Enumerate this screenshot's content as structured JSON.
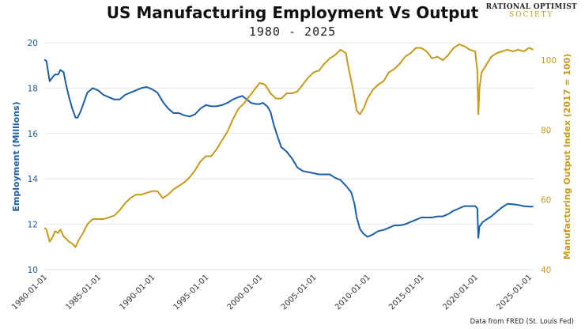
{
  "chart_data": {
    "type": "line",
    "title": "US Manufacturing Employment Vs Output",
    "subtitle": "1980 - 2025",
    "ylabel_left": "Employment (Millions)",
    "ylabel_right": "Manufacturing Output Index (2017 = 100)",
    "ylim_left": [
      10,
      20
    ],
    "ylim_right": [
      40,
      105
    ],
    "xlim": [
      1980,
      2025.5
    ],
    "yticks_left": [
      10,
      12,
      14,
      16,
      18,
      20
    ],
    "yticks_right": [
      40,
      60,
      80,
      100
    ],
    "xticks": [
      {
        "year": 1980,
        "label": "1980-01-01"
      },
      {
        "year": 1985,
        "label": "1985-01-01"
      },
      {
        "year": 1990,
        "label": "1990-01-01"
      },
      {
        "year": 1995,
        "label": "1995-01-01"
      },
      {
        "year": 2000,
        "label": "2000-01-01"
      },
      {
        "year": 2005,
        "label": "2005-01-01"
      },
      {
        "year": 2010,
        "label": "2010-01-01"
      },
      {
        "year": 2015,
        "label": "2015-01-01"
      },
      {
        "year": 2020,
        "label": "2020-01-01"
      },
      {
        "year": 2025,
        "label": "2025-01-01"
      }
    ],
    "grid": "horizontal",
    "series": [
      {
        "name": "Employment (Millions)",
        "axis": "left",
        "color": "#1b5fa8",
        "points": [
          [
            1980.0,
            19.25
          ],
          [
            1980.2,
            19.2
          ],
          [
            1980.5,
            18.3
          ],
          [
            1980.8,
            18.5
          ],
          [
            1981.0,
            18.6
          ],
          [
            1981.3,
            18.6
          ],
          [
            1981.5,
            18.8
          ],
          [
            1981.8,
            18.7
          ],
          [
            1982.0,
            18.2
          ],
          [
            1982.3,
            17.6
          ],
          [
            1982.6,
            17.1
          ],
          [
            1982.9,
            16.7
          ],
          [
            1983.1,
            16.7
          ],
          [
            1983.4,
            17.0
          ],
          [
            1983.7,
            17.4
          ],
          [
            1984.0,
            17.8
          ],
          [
            1984.5,
            18.0
          ],
          [
            1985.0,
            17.9
          ],
          [
            1985.5,
            17.7
          ],
          [
            1986.0,
            17.6
          ],
          [
            1986.5,
            17.5
          ],
          [
            1987.0,
            17.5
          ],
          [
            1987.5,
            17.7
          ],
          [
            1988.0,
            17.8
          ],
          [
            1988.5,
            17.9
          ],
          [
            1989.0,
            18.0
          ],
          [
            1989.5,
            18.05
          ],
          [
            1990.0,
            17.95
          ],
          [
            1990.5,
            17.8
          ],
          [
            1991.0,
            17.4
          ],
          [
            1991.5,
            17.1
          ],
          [
            1992.0,
            16.9
          ],
          [
            1992.5,
            16.9
          ],
          [
            1993.0,
            16.8
          ],
          [
            1993.5,
            16.75
          ],
          [
            1994.0,
            16.85
          ],
          [
            1994.5,
            17.1
          ],
          [
            1995.0,
            17.25
          ],
          [
            1995.5,
            17.2
          ],
          [
            1996.0,
            17.2
          ],
          [
            1996.5,
            17.25
          ],
          [
            1997.0,
            17.35
          ],
          [
            1997.5,
            17.5
          ],
          [
            1998.0,
            17.6
          ],
          [
            1998.4,
            17.65
          ],
          [
            1998.8,
            17.5
          ],
          [
            1999.2,
            17.35
          ],
          [
            1999.6,
            17.3
          ],
          [
            2000.0,
            17.3
          ],
          [
            2000.3,
            17.35
          ],
          [
            2000.7,
            17.2
          ],
          [
            2001.0,
            16.95
          ],
          [
            2001.3,
            16.4
          ],
          [
            2001.7,
            15.8
          ],
          [
            2002.0,
            15.4
          ],
          [
            2002.5,
            15.2
          ],
          [
            2003.0,
            14.9
          ],
          [
            2003.5,
            14.5
          ],
          [
            2004.0,
            14.35
          ],
          [
            2004.5,
            14.3
          ],
          [
            2005.0,
            14.25
          ],
          [
            2005.5,
            14.2
          ],
          [
            2006.0,
            14.2
          ],
          [
            2006.5,
            14.2
          ],
          [
            2007.0,
            14.05
          ],
          [
            2007.5,
            13.95
          ],
          [
            2008.0,
            13.7
          ],
          [
            2008.5,
            13.4
          ],
          [
            2008.8,
            12.9
          ],
          [
            2009.0,
            12.3
          ],
          [
            2009.3,
            11.8
          ],
          [
            2009.6,
            11.6
          ],
          [
            2010.0,
            11.45
          ],
          [
            2010.5,
            11.55
          ],
          [
            2011.0,
            11.7
          ],
          [
            2011.5,
            11.75
          ],
          [
            2012.0,
            11.85
          ],
          [
            2012.5,
            11.95
          ],
          [
            2013.0,
            11.95
          ],
          [
            2013.5,
            12.0
          ],
          [
            2014.0,
            12.1
          ],
          [
            2014.5,
            12.2
          ],
          [
            2015.0,
            12.3
          ],
          [
            2015.5,
            12.3
          ],
          [
            2016.0,
            12.3
          ],
          [
            2016.5,
            12.35
          ],
          [
            2017.0,
            12.35
          ],
          [
            2017.5,
            12.45
          ],
          [
            2018.0,
            12.6
          ],
          [
            2018.5,
            12.7
          ],
          [
            2019.0,
            12.8
          ],
          [
            2019.5,
            12.8
          ],
          [
            2020.0,
            12.8
          ],
          [
            2020.2,
            12.7
          ],
          [
            2020.3,
            11.4
          ],
          [
            2020.4,
            11.9
          ],
          [
            2020.7,
            12.1
          ],
          [
            2021.0,
            12.2
          ],
          [
            2021.5,
            12.35
          ],
          [
            2022.0,
            12.55
          ],
          [
            2022.5,
            12.75
          ],
          [
            2023.0,
            12.9
          ],
          [
            2023.5,
            12.88
          ],
          [
            2024.0,
            12.85
          ],
          [
            2024.5,
            12.8
          ],
          [
            2025.0,
            12.78
          ],
          [
            2025.4,
            12.78
          ]
        ]
      },
      {
        "name": "Manufacturing Output Index (2017 = 100)",
        "axis": "right",
        "color": "#c79a1b",
        "points": [
          [
            1980.0,
            52.0
          ],
          [
            1980.2,
            51.5
          ],
          [
            1980.5,
            48.0
          ],
          [
            1980.8,
            49.5
          ],
          [
            1981.0,
            51.0
          ],
          [
            1981.3,
            50.5
          ],
          [
            1981.5,
            51.5
          ],
          [
            1981.8,
            49.5
          ],
          [
            1982.0,
            49.0
          ],
          [
            1982.3,
            48.0
          ],
          [
            1982.6,
            47.5
          ],
          [
            1982.9,
            46.5
          ],
          [
            1983.2,
            48.5
          ],
          [
            1983.6,
            50.5
          ],
          [
            1984.0,
            53.0
          ],
          [
            1984.5,
            54.5
          ],
          [
            1985.0,
            54.5
          ],
          [
            1985.5,
            54.5
          ],
          [
            1986.0,
            55.0
          ],
          [
            1986.5,
            55.5
          ],
          [
            1987.0,
            57.0
          ],
          [
            1987.5,
            59.0
          ],
          [
            1988.0,
            60.5
          ],
          [
            1988.5,
            61.5
          ],
          [
            1989.0,
            61.5
          ],
          [
            1989.5,
            62.0
          ],
          [
            1990.0,
            62.5
          ],
          [
            1990.5,
            62.5
          ],
          [
            1991.0,
            60.5
          ],
          [
            1991.5,
            61.5
          ],
          [
            1992.0,
            63.0
          ],
          [
            1992.5,
            64.0
          ],
          [
            1993.0,
            65.0
          ],
          [
            1993.5,
            66.5
          ],
          [
            1994.0,
            68.5
          ],
          [
            1994.5,
            71.0
          ],
          [
            1995.0,
            72.5
          ],
          [
            1995.5,
            72.5
          ],
          [
            1996.0,
            74.5
          ],
          [
            1996.5,
            77.0
          ],
          [
            1997.0,
            79.5
          ],
          [
            1997.5,
            83.0
          ],
          [
            1998.0,
            86.0
          ],
          [
            1998.5,
            87.5
          ],
          [
            1999.0,
            89.5
          ],
          [
            1999.5,
            91.5
          ],
          [
            2000.0,
            93.5
          ],
          [
            2000.5,
            93.0
          ],
          [
            2001.0,
            90.5
          ],
          [
            2001.5,
            89.0
          ],
          [
            2002.0,
            89.0
          ],
          [
            2002.5,
            90.5
          ],
          [
            2003.0,
            90.5
          ],
          [
            2003.5,
            91.0
          ],
          [
            2004.0,
            93.0
          ],
          [
            2004.5,
            95.0
          ],
          [
            2005.0,
            96.5
          ],
          [
            2005.5,
            97.0
          ],
          [
            2006.0,
            99.0
          ],
          [
            2006.5,
            100.5
          ],
          [
            2007.0,
            101.5
          ],
          [
            2007.5,
            103.0
          ],
          [
            2008.0,
            102.0
          ],
          [
            2008.3,
            97.0
          ],
          [
            2008.7,
            91.0
          ],
          [
            2009.0,
            85.5
          ],
          [
            2009.3,
            84.5
          ],
          [
            2009.7,
            86.5
          ],
          [
            2010.0,
            89.0
          ],
          [
            2010.5,
            91.5
          ],
          [
            2011.0,
            93.0
          ],
          [
            2011.5,
            94.0
          ],
          [
            2012.0,
            96.5
          ],
          [
            2012.5,
            97.5
          ],
          [
            2013.0,
            99.0
          ],
          [
            2013.5,
            101.0
          ],
          [
            2014.0,
            102.0
          ],
          [
            2014.5,
            103.5
          ],
          [
            2015.0,
            103.5
          ],
          [
            2015.5,
            102.5
          ],
          [
            2016.0,
            100.5
          ],
          [
            2016.5,
            101.0
          ],
          [
            2017.0,
            100.0
          ],
          [
            2017.5,
            101.5
          ],
          [
            2018.0,
            103.5
          ],
          [
            2018.5,
            104.5
          ],
          [
            2019.0,
            104.0
          ],
          [
            2019.5,
            103.0
          ],
          [
            2020.0,
            102.5
          ],
          [
            2020.2,
            97.0
          ],
          [
            2020.3,
            84.5
          ],
          [
            2020.4,
            92.0
          ],
          [
            2020.6,
            96.5
          ],
          [
            2021.0,
            98.5
          ],
          [
            2021.5,
            101.0
          ],
          [
            2022.0,
            102.0
          ],
          [
            2022.5,
            102.5
          ],
          [
            2023.0,
            103.0
          ],
          [
            2023.5,
            102.5
          ],
          [
            2024.0,
            103.0
          ],
          [
            2024.5,
            102.5
          ],
          [
            2025.0,
            103.5
          ],
          [
            2025.4,
            103.0
          ]
        ]
      }
    ]
  },
  "logo": {
    "line1": "RATIONAL OPTIMIST",
    "line2": "SOCIETY"
  },
  "source": "Data from FRED (St. Louis Fed)"
}
